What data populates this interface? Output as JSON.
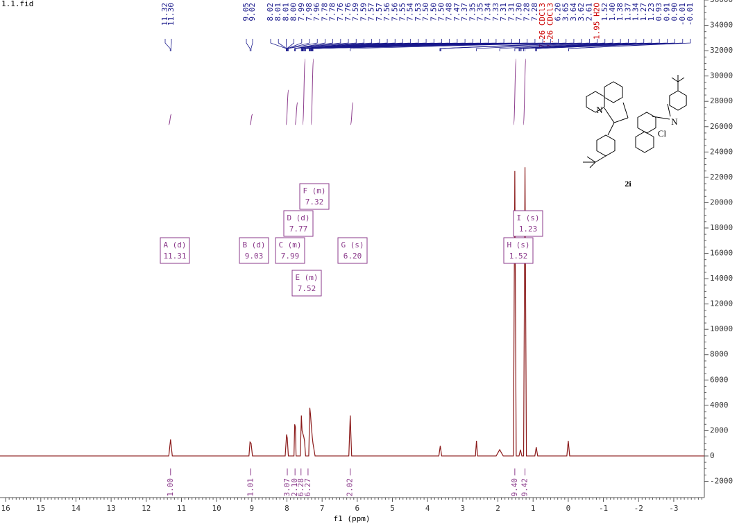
{
  "chart_data": {
    "type": "line",
    "title": "1.1.fid",
    "xlabel": "f1 (ppm)",
    "xlim": [
      16.16,
      -3.87
    ],
    "xticks": [
      16,
      15,
      14,
      13,
      12,
      11,
      10,
      9,
      8,
      7,
      6,
      5,
      4,
      3,
      2,
      1,
      0,
      -1,
      -2,
      -3
    ],
    "ylim": [
      -3285,
      36000
    ],
    "yticks": [
      -2000,
      0,
      2000,
      4000,
      6000,
      8000,
      10000,
      12000,
      14000,
      16000,
      18000,
      20000,
      22000,
      24000,
      26000,
      28000,
      30000,
      32000,
      34000,
      36000
    ],
    "grid": false,
    "series": [
      {
        "color": "#8b1a1a",
        "x": [
          16.16,
          11.36,
          11.31,
          11.26,
          9.08,
          9.05,
          9.02,
          8.98,
          8.05,
          8.01,
          7.99,
          7.96,
          7.8,
          7.78,
          7.76,
          7.74,
          7.62,
          7.59,
          7.57,
          7.55,
          7.52,
          7.5,
          7.47,
          7.38,
          7.35,
          7.33,
          7.31,
          7.28,
          7.26,
          7.2,
          6.24,
          6.2,
          6.16,
          3.68,
          3.64,
          3.6,
          2.64,
          2.61,
          2.58,
          2.05,
          1.95,
          1.85,
          1.56,
          1.52,
          1.48,
          1.4,
          1.36,
          1.32,
          1.27,
          1.23,
          1.19,
          0.95,
          0.91,
          0.87,
          0.04,
          0,
          -0.04,
          -3.87
        ],
        "values": [
          0,
          0,
          1300,
          0,
          0,
          1100,
          1000,
          0,
          0,
          1700,
          1400,
          0,
          0,
          2500,
          2300,
          0,
          0,
          3200,
          2000,
          1800,
          1500,
          1200,
          0,
          0,
          3800,
          3300,
          2500,
          1500,
          1000,
          0,
          0,
          3200,
          0,
          0,
          800,
          0,
          0,
          1200,
          0,
          0,
          500,
          0,
          0,
          22500,
          0,
          0,
          500,
          0,
          0,
          22800,
          0,
          0,
          700,
          0,
          0,
          1200,
          0,
          0
        ]
      }
    ],
    "peak_labels": [
      "11.32",
      "11.30",
      "9.05",
      "9.02",
      "8.02",
      "8.01",
      "8.01",
      "8.00",
      "7.99",
      "7.98",
      "7.96",
      "7.78",
      "7.78",
      "7.76",
      "7.76",
      "7.59",
      "7.59",
      "7.57",
      "7.57",
      "7.56",
      "7.56",
      "7.55",
      "7.54",
      "7.53",
      "7.50",
      "7.50",
      "7.50",
      "7.48",
      "7.47",
      "7.37",
      "7.35",
      "7.35",
      "7.34",
      "7.33",
      "7.31",
      "7.31",
      "7.30",
      "7.28",
      "7.28",
      "7.26 CDCl3",
      "7.26 CDCl3",
      "6.20",
      "3.65",
      "3.64",
      "3.62",
      "2.61",
      "1.95 H2O",
      "1.52",
      "1.40",
      "1.38",
      "1.37",
      "1.34",
      "1.27",
      "1.23",
      "0.93",
      "0.91",
      "0.90",
      "-0.01",
      "-0.01"
    ],
    "multiplets": [
      {
        "name": "A (d)",
        "shift": "11.31"
      },
      {
        "name": "B (d)",
        "shift": "9.03"
      },
      {
        "name": "C (m)",
        "shift": "7.99"
      },
      {
        "name": "D (d)",
        "shift": "7.77"
      },
      {
        "name": "E (m)",
        "shift": "7.52"
      },
      {
        "name": "F (m)",
        "shift": "7.32"
      },
      {
        "name": "G (s)",
        "shift": "6.20"
      },
      {
        "name": "H (s)",
        "shift": "1.52"
      },
      {
        "name": "I (s)",
        "shift": "1.23"
      }
    ],
    "integrals": [
      {
        "label": "1.00",
        "x": 11.31
      },
      {
        "label": "1.01",
        "x": 9.03
      },
      {
        "label": "3.07",
        "x": 7.99
      },
      {
        "label": "2.10",
        "x": 7.77
      },
      {
        "label": "6.28",
        "x": 7.6
      },
      {
        "label": "6.27",
        "x": 7.4
      },
      {
        "label": "2.02",
        "x": 6.2
      },
      {
        "label": "9.40",
        "x": 1.52
      },
      {
        "label": "9.42",
        "x": 1.23
      }
    ]
  },
  "structure": {
    "label": "2i",
    "atoms": [
      "N",
      "N",
      "Cl"
    ]
  }
}
